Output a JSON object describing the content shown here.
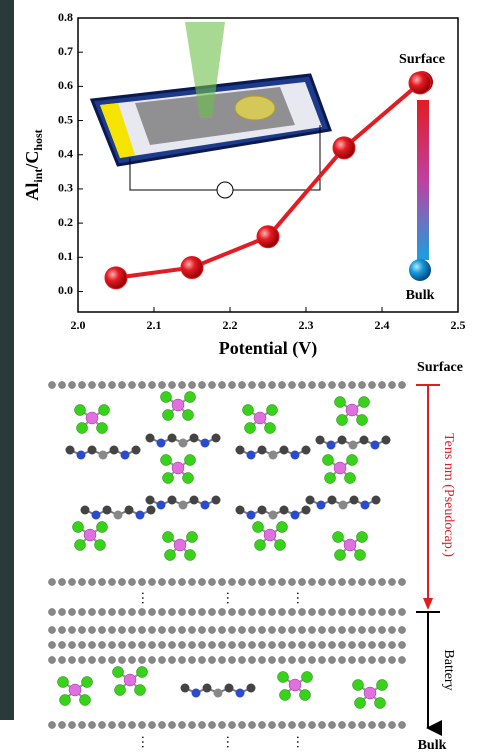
{
  "chart_data": {
    "type": "line",
    "xlabel": "Potential (V)",
    "ylabel": [
      "Al",
      "int",
      "/C",
      "host"
    ],
    "x": [
      2.05,
      2.15,
      2.25,
      2.35,
      2.45
    ],
    "series": [
      {
        "color": "#e31b23",
        "values": [
          0.04,
          0.07,
          0.16,
          0.42,
          0.61
        ]
      }
    ],
    "xlim": [
      2.0,
      2.5
    ],
    "xticks": [
      {
        "value": 2.0,
        "label": "2.0"
      },
      2.1,
      2.2,
      2.3,
      2.4,
      {
        "value": 2.5,
        "label": "2.5"
      }
    ],
    "ylim": [
      -0.06,
      0.8
    ],
    "yticks": [
      {
        "value": 0,
        "label": "0.0"
      },
      0.1,
      0.2,
      0.3,
      0.4,
      0.5,
      0.6,
      0.7,
      0.8
    ],
    "annotations": {
      "surface": "Surface",
      "bulk": "Bulk"
    }
  },
  "diagram": {
    "surface": "Surface",
    "pseudocap": "Tens nm (Pseudocap.)",
    "battery": "Battery",
    "bulk": "Bulk"
  }
}
